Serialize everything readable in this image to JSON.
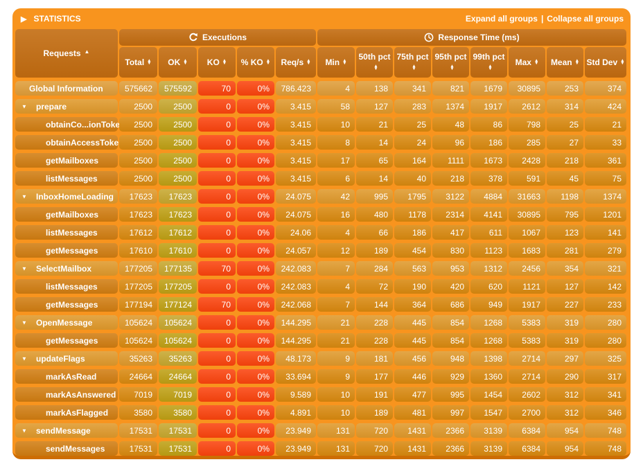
{
  "title_bar": {
    "title": "STATISTICS",
    "expand_link": "Expand all groups",
    "separator": "|",
    "collapse_link": "Collapse all groups"
  },
  "table": {
    "requests_header": "Requests",
    "requests_sort_indicator": "asc",
    "group_headers": {
      "executions": "Executions",
      "response_time": "Response Time (ms)"
    },
    "columns": [
      {
        "key": "total",
        "label": "Total"
      },
      {
        "key": "ok",
        "label": "OK"
      },
      {
        "key": "ko",
        "label": "KO"
      },
      {
        "key": "pct_ko",
        "label": "% KO"
      },
      {
        "key": "reqs",
        "label": "Req/s"
      },
      {
        "key": "min",
        "label": "Min"
      },
      {
        "key": "p50",
        "label": "50th pct"
      },
      {
        "key": "p75",
        "label": "75th pct"
      },
      {
        "key": "p95",
        "label": "95th pct"
      },
      {
        "key": "p99",
        "label": "99th pct"
      },
      {
        "key": "max",
        "label": "Max"
      },
      {
        "key": "mean",
        "label": "Mean"
      },
      {
        "key": "stddev",
        "label": "Std Dev"
      }
    ],
    "rows": [
      {
        "name": "Global Information",
        "type": "global",
        "values": [
          "575662",
          "575592",
          "70",
          "0%",
          "786.423",
          "4",
          "138",
          "341",
          "821",
          "1679",
          "30895",
          "253",
          "374"
        ]
      },
      {
        "name": "prepare",
        "type": "group",
        "values": [
          "2500",
          "2500",
          "0",
          "0%",
          "3.415",
          "58",
          "127",
          "283",
          "1374",
          "1917",
          "2612",
          "314",
          "424"
        ]
      },
      {
        "name": "obtainCo...ionToken",
        "type": "leaf",
        "values": [
          "2500",
          "2500",
          "0",
          "0%",
          "3.415",
          "10",
          "21",
          "25",
          "48",
          "86",
          "798",
          "25",
          "21"
        ]
      },
      {
        "name": "obtainAccessToken",
        "type": "leaf",
        "values": [
          "2500",
          "2500",
          "0",
          "0%",
          "3.415",
          "8",
          "14",
          "24",
          "96",
          "186",
          "285",
          "27",
          "33"
        ]
      },
      {
        "name": "getMailboxes",
        "type": "leaf",
        "values": [
          "2500",
          "2500",
          "0",
          "0%",
          "3.415",
          "17",
          "65",
          "164",
          "1111",
          "1673",
          "2428",
          "218",
          "361"
        ]
      },
      {
        "name": "listMessages",
        "type": "leaf",
        "values": [
          "2500",
          "2500",
          "0",
          "0%",
          "3.415",
          "6",
          "14",
          "40",
          "218",
          "378",
          "591",
          "45",
          "75"
        ]
      },
      {
        "name": "InboxHomeLoading",
        "type": "group",
        "values": [
          "17623",
          "17623",
          "0",
          "0%",
          "24.075",
          "42",
          "995",
          "1795",
          "3122",
          "4884",
          "31663",
          "1198",
          "1374"
        ]
      },
      {
        "name": "getMailboxes",
        "type": "leaf",
        "values": [
          "17623",
          "17623",
          "0",
          "0%",
          "24.075",
          "16",
          "480",
          "1178",
          "2314",
          "4141",
          "30895",
          "795",
          "1201"
        ]
      },
      {
        "name": "listMessages",
        "type": "leaf",
        "values": [
          "17612",
          "17612",
          "0",
          "0%",
          "24.06",
          "4",
          "66",
          "186",
          "417",
          "611",
          "1067",
          "123",
          "141"
        ]
      },
      {
        "name": "getMessages",
        "type": "leaf",
        "values": [
          "17610",
          "17610",
          "0",
          "0%",
          "24.057",
          "12",
          "189",
          "454",
          "830",
          "1123",
          "1683",
          "281",
          "279"
        ]
      },
      {
        "name": "SelectMailbox",
        "type": "group",
        "values": [
          "177205",
          "177135",
          "70",
          "0%",
          "242.083",
          "7",
          "284",
          "563",
          "953",
          "1312",
          "2456",
          "354",
          "321"
        ]
      },
      {
        "name": "listMessages",
        "type": "leaf",
        "values": [
          "177205",
          "177205",
          "0",
          "0%",
          "242.083",
          "4",
          "72",
          "190",
          "420",
          "620",
          "1121",
          "127",
          "142"
        ]
      },
      {
        "name": "getMessages",
        "type": "leaf",
        "values": [
          "177194",
          "177124",
          "70",
          "0%",
          "242.068",
          "7",
          "144",
          "364",
          "686",
          "949",
          "1917",
          "227",
          "233"
        ]
      },
      {
        "name": "OpenMessage",
        "type": "group",
        "values": [
          "105624",
          "105624",
          "0",
          "0%",
          "144.295",
          "21",
          "228",
          "445",
          "854",
          "1268",
          "5383",
          "319",
          "280"
        ]
      },
      {
        "name": "getMessages",
        "type": "leaf",
        "values": [
          "105624",
          "105624",
          "0",
          "0%",
          "144.295",
          "21",
          "228",
          "445",
          "854",
          "1268",
          "5383",
          "319",
          "280"
        ]
      },
      {
        "name": "updateFlags",
        "type": "group",
        "values": [
          "35263",
          "35263",
          "0",
          "0%",
          "48.173",
          "9",
          "181",
          "456",
          "948",
          "1398",
          "2714",
          "297",
          "325"
        ]
      },
      {
        "name": "markAsRead",
        "type": "leaf",
        "values": [
          "24664",
          "24664",
          "0",
          "0%",
          "33.694",
          "9",
          "177",
          "446",
          "929",
          "1360",
          "2714",
          "290",
          "317"
        ]
      },
      {
        "name": "markAsAnswered",
        "type": "leaf",
        "values": [
          "7019",
          "7019",
          "0",
          "0%",
          "9.589",
          "10",
          "191",
          "477",
          "995",
          "1454",
          "2602",
          "312",
          "341"
        ]
      },
      {
        "name": "markAsFlagged",
        "type": "leaf",
        "values": [
          "3580",
          "3580",
          "0",
          "0%",
          "4.891",
          "10",
          "189",
          "481",
          "997",
          "1547",
          "2700",
          "312",
          "346"
        ]
      },
      {
        "name": "sendMessage",
        "type": "group",
        "values": [
          "17531",
          "17531",
          "0",
          "0%",
          "23.949",
          "131",
          "720",
          "1431",
          "2366",
          "3139",
          "6384",
          "954",
          "748"
        ]
      },
      {
        "name": "sendMessages",
        "type": "leaf",
        "values": [
          "17531",
          "17531",
          "0",
          "0%",
          "23.949",
          "131",
          "720",
          "1431",
          "2366",
          "3139",
          "6384",
          "954",
          "748"
        ]
      }
    ]
  },
  "colors": {
    "panel": "#f8941e",
    "panel_edge": "#cd6d03",
    "header_cell": "#c36c10",
    "global_cell": "#e09d38",
    "global_ok_cell": "#c7a83a",
    "group_cell": "#e0992b",
    "group_ok_cell": "#c7a72e",
    "leaf_cell": "#d9890f",
    "leaf_name_cell": "#d17d11",
    "leaf_ok_cell": "#bfa014",
    "ko_cell": "#fb430d",
    "text": "#ffffff"
  }
}
